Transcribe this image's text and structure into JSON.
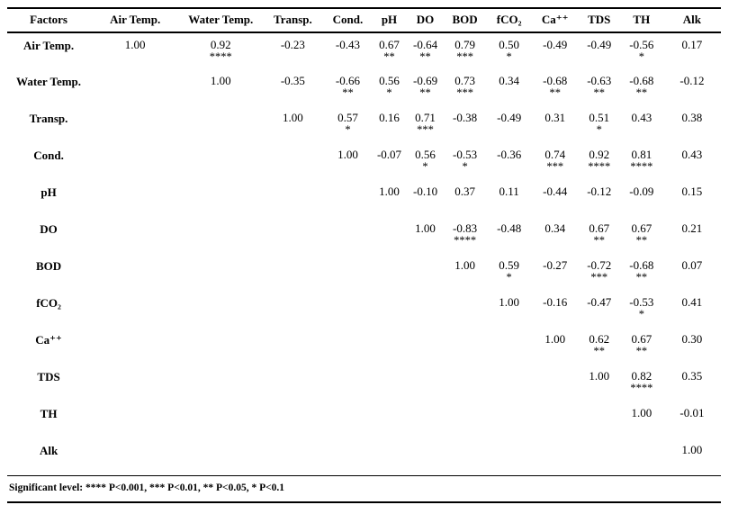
{
  "table": {
    "columns": [
      "Factors",
      "Air Temp.",
      "Water Temp.",
      "Transp.",
      "Cond.",
      "pH",
      "DO",
      "BOD",
      "fCO₂",
      "Ca⁺⁺",
      "TDS",
      "TH",
      "Alk"
    ],
    "rows": [
      {
        "label": "Air Temp.",
        "cells": [
          {
            "v": "1.00",
            "s": ""
          },
          {
            "v": "0.92",
            "s": "****"
          },
          {
            "v": "-0.23",
            "s": ""
          },
          {
            "v": "-0.43",
            "s": ""
          },
          {
            "v": "0.67",
            "s": "**"
          },
          {
            "v": "-0.64",
            "s": "**"
          },
          {
            "v": "0.79",
            "s": "***"
          },
          {
            "v": "0.50",
            "s": "*"
          },
          {
            "v": "-0.49",
            "s": ""
          },
          {
            "v": "-0.49",
            "s": ""
          },
          {
            "v": "-0.56",
            "s": "*"
          },
          {
            "v": "0.17",
            "s": ""
          }
        ]
      },
      {
        "label": "Water Temp.",
        "cells": [
          {
            "v": "",
            "s": ""
          },
          {
            "v": "1.00",
            "s": ""
          },
          {
            "v": "-0.35",
            "s": ""
          },
          {
            "v": "-0.66",
            "s": "**"
          },
          {
            "v": "0.56",
            "s": "*"
          },
          {
            "v": "-0.69",
            "s": "**"
          },
          {
            "v": "0.73",
            "s": "***"
          },
          {
            "v": "0.34",
            "s": ""
          },
          {
            "v": "-0.68",
            "s": "**"
          },
          {
            "v": "-0.63",
            "s": "**"
          },
          {
            "v": "-0.68",
            "s": "**"
          },
          {
            "v": "-0.12",
            "s": ""
          }
        ]
      },
      {
        "label": "Transp.",
        "cells": [
          {
            "v": "",
            "s": ""
          },
          {
            "v": "",
            "s": ""
          },
          {
            "v": "1.00",
            "s": ""
          },
          {
            "v": "0.57",
            "s": "*"
          },
          {
            "v": "0.16",
            "s": ""
          },
          {
            "v": "0.71",
            "s": "***"
          },
          {
            "v": "-0.38",
            "s": ""
          },
          {
            "v": "-0.49",
            "s": ""
          },
          {
            "v": "0.31",
            "s": ""
          },
          {
            "v": "0.51",
            "s": "*"
          },
          {
            "v": "0.43",
            "s": ""
          },
          {
            "v": "0.38",
            "s": ""
          }
        ]
      },
      {
        "label": "Cond.",
        "cells": [
          {
            "v": "",
            "s": ""
          },
          {
            "v": "",
            "s": ""
          },
          {
            "v": "",
            "s": ""
          },
          {
            "v": "1.00",
            "s": ""
          },
          {
            "v": "-0.07",
            "s": ""
          },
          {
            "v": "0.56",
            "s": "*"
          },
          {
            "v": "-0.53",
            "s": "*"
          },
          {
            "v": "-0.36",
            "s": ""
          },
          {
            "v": "0.74",
            "s": "***"
          },
          {
            "v": "0.92",
            "s": "****"
          },
          {
            "v": "0.81",
            "s": "****"
          },
          {
            "v": "0.43",
            "s": ""
          }
        ]
      },
      {
        "label": "pH",
        "cells": [
          {
            "v": "",
            "s": ""
          },
          {
            "v": "",
            "s": ""
          },
          {
            "v": "",
            "s": ""
          },
          {
            "v": "",
            "s": ""
          },
          {
            "v": "1.00",
            "s": ""
          },
          {
            "v": "-0.10",
            "s": ""
          },
          {
            "v": "0.37",
            "s": ""
          },
          {
            "v": "0.11",
            "s": ""
          },
          {
            "v": "-0.44",
            "s": ""
          },
          {
            "v": "-0.12",
            "s": ""
          },
          {
            "v": "-0.09",
            "s": ""
          },
          {
            "v": "0.15",
            "s": ""
          }
        ]
      },
      {
        "label": "DO",
        "cells": [
          {
            "v": "",
            "s": ""
          },
          {
            "v": "",
            "s": ""
          },
          {
            "v": "",
            "s": ""
          },
          {
            "v": "",
            "s": ""
          },
          {
            "v": "",
            "s": ""
          },
          {
            "v": "1.00",
            "s": ""
          },
          {
            "v": "-0.83",
            "s": "****"
          },
          {
            "v": "-0.48",
            "s": ""
          },
          {
            "v": "0.34",
            "s": ""
          },
          {
            "v": "0.67",
            "s": "**"
          },
          {
            "v": "0.67",
            "s": "**"
          },
          {
            "v": "0.21",
            "s": ""
          }
        ]
      },
      {
        "label": "BOD",
        "cells": [
          {
            "v": "",
            "s": ""
          },
          {
            "v": "",
            "s": ""
          },
          {
            "v": "",
            "s": ""
          },
          {
            "v": "",
            "s": ""
          },
          {
            "v": "",
            "s": ""
          },
          {
            "v": "",
            "s": ""
          },
          {
            "v": "1.00",
            "s": ""
          },
          {
            "v": "0.59",
            "s": "*"
          },
          {
            "v": "-0.27",
            "s": ""
          },
          {
            "v": "-0.72",
            "s": "***"
          },
          {
            "v": "-0.68",
            "s": "**"
          },
          {
            "v": "0.07",
            "s": ""
          }
        ]
      },
      {
        "label": "fCO₂",
        "cells": [
          {
            "v": "",
            "s": ""
          },
          {
            "v": "",
            "s": ""
          },
          {
            "v": "",
            "s": ""
          },
          {
            "v": "",
            "s": ""
          },
          {
            "v": "",
            "s": ""
          },
          {
            "v": "",
            "s": ""
          },
          {
            "v": "",
            "s": ""
          },
          {
            "v": "1.00",
            "s": ""
          },
          {
            "v": "-0.16",
            "s": ""
          },
          {
            "v": "-0.47",
            "s": ""
          },
          {
            "v": "-0.53",
            "s": "*"
          },
          {
            "v": "0.41",
            "s": ""
          }
        ]
      },
      {
        "label": "Ca⁺⁺",
        "cells": [
          {
            "v": "",
            "s": ""
          },
          {
            "v": "",
            "s": ""
          },
          {
            "v": "",
            "s": ""
          },
          {
            "v": "",
            "s": ""
          },
          {
            "v": "",
            "s": ""
          },
          {
            "v": "",
            "s": ""
          },
          {
            "v": "",
            "s": ""
          },
          {
            "v": "",
            "s": ""
          },
          {
            "v": "1.00",
            "s": ""
          },
          {
            "v": "0.62",
            "s": "**"
          },
          {
            "v": "0.67",
            "s": "**"
          },
          {
            "v": "0.30",
            "s": ""
          }
        ]
      },
      {
        "label": "TDS",
        "cells": [
          {
            "v": "",
            "s": ""
          },
          {
            "v": "",
            "s": ""
          },
          {
            "v": "",
            "s": ""
          },
          {
            "v": "",
            "s": ""
          },
          {
            "v": "",
            "s": ""
          },
          {
            "v": "",
            "s": ""
          },
          {
            "v": "",
            "s": ""
          },
          {
            "v": "",
            "s": ""
          },
          {
            "v": "",
            "s": ""
          },
          {
            "v": "1.00",
            "s": ""
          },
          {
            "v": "0.82",
            "s": "****"
          },
          {
            "v": "0.35",
            "s": ""
          }
        ]
      },
      {
        "label": "TH",
        "cells": [
          {
            "v": "",
            "s": ""
          },
          {
            "v": "",
            "s": ""
          },
          {
            "v": "",
            "s": ""
          },
          {
            "v": "",
            "s": ""
          },
          {
            "v": "",
            "s": ""
          },
          {
            "v": "",
            "s": ""
          },
          {
            "v": "",
            "s": ""
          },
          {
            "v": "",
            "s": ""
          },
          {
            "v": "",
            "s": ""
          },
          {
            "v": "",
            "s": ""
          },
          {
            "v": "1.00",
            "s": ""
          },
          {
            "v": "-0.01",
            "s": ""
          }
        ]
      },
      {
        "label": "Alk",
        "cells": [
          {
            "v": "",
            "s": ""
          },
          {
            "v": "",
            "s": ""
          },
          {
            "v": "",
            "s": ""
          },
          {
            "v": "",
            "s": ""
          },
          {
            "v": "",
            "s": ""
          },
          {
            "v": "",
            "s": ""
          },
          {
            "v": "",
            "s": ""
          },
          {
            "v": "",
            "s": ""
          },
          {
            "v": "",
            "s": ""
          },
          {
            "v": "",
            "s": ""
          },
          {
            "v": "",
            "s": ""
          },
          {
            "v": "1.00",
            "s": ""
          }
        ]
      }
    ],
    "footnote": "Significant level: **** P<0.001, *** P<0.01, ** P<0.05, * P<0.1"
  }
}
